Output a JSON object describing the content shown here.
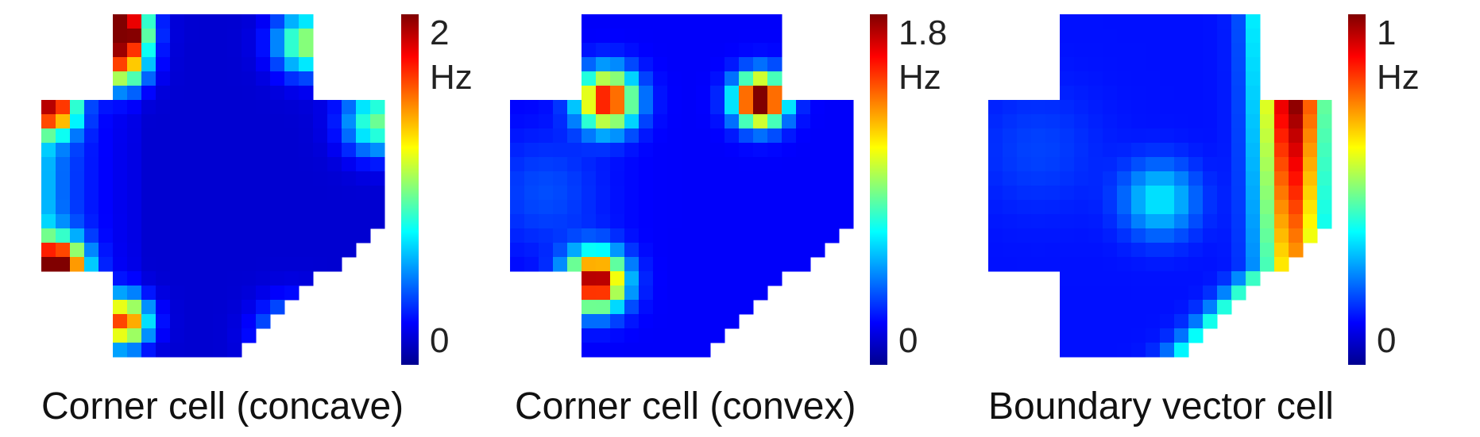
{
  "chart_data": [
    {
      "type": "heatmap",
      "title": "Corner cell (concave)",
      "colorbar": {
        "max_label": "2",
        "unit_label": "Hz",
        "min_label": "0",
        "vmin": 0,
        "vmax": 2
      },
      "colormap": "jet",
      "arena": "cross-shaped enclosure with rounded lower-right quadrant",
      "hotspots": [
        {
          "location": "top arm, top-left corner",
          "value_hz": 2.0
        },
        {
          "location": "left arm, lower-left corner",
          "value_hz": 2.0
        },
        {
          "location": "left arm, upper-left corner",
          "value_hz": 1.4
        },
        {
          "location": "bottom arm, left edge",
          "value_hz": 1.5
        },
        {
          "location": "top arm, right edge",
          "value_hz": 0.9
        },
        {
          "location": "right arm, right edge",
          "value_hz": 0.8
        },
        {
          "location": "bottom arm, right edge",
          "value_hz": 0.6
        }
      ]
    },
    {
      "type": "heatmap",
      "title": "Corner cell (convex)",
      "colorbar": {
        "max_label": "1.8",
        "unit_label": "Hz",
        "min_label": "0",
        "vmin": 0,
        "vmax": 1.8
      },
      "colormap": "jet",
      "arena": "cross-shaped enclosure with rounded lower-right quadrant",
      "hotspots": [
        {
          "location": "inner convex corner, upper-left",
          "value_hz": 1.4
        },
        {
          "location": "inner convex corner, upper-right",
          "value_hz": 1.8
        },
        {
          "location": "inner convex corner, lower-left",
          "value_hz": 1.6
        }
      ]
    },
    {
      "type": "heatmap",
      "title": "Boundary vector cell",
      "colorbar": {
        "max_label": "1",
        "unit_label": "Hz",
        "min_label": "0",
        "vmin": 0,
        "vmax": 1
      },
      "colormap": "jet",
      "arena": "cross-shaped enclosure with rounded lower-right quadrant",
      "hotspots": [
        {
          "location": "band parallel to right boundary, top",
          "value_hz": 1.0
        },
        {
          "location": "band parallel to right boundary, middle",
          "value_hz": 0.8
        },
        {
          "location": "band parallel to right boundary, bottom",
          "value_hz": 0.5
        }
      ]
    }
  ]
}
